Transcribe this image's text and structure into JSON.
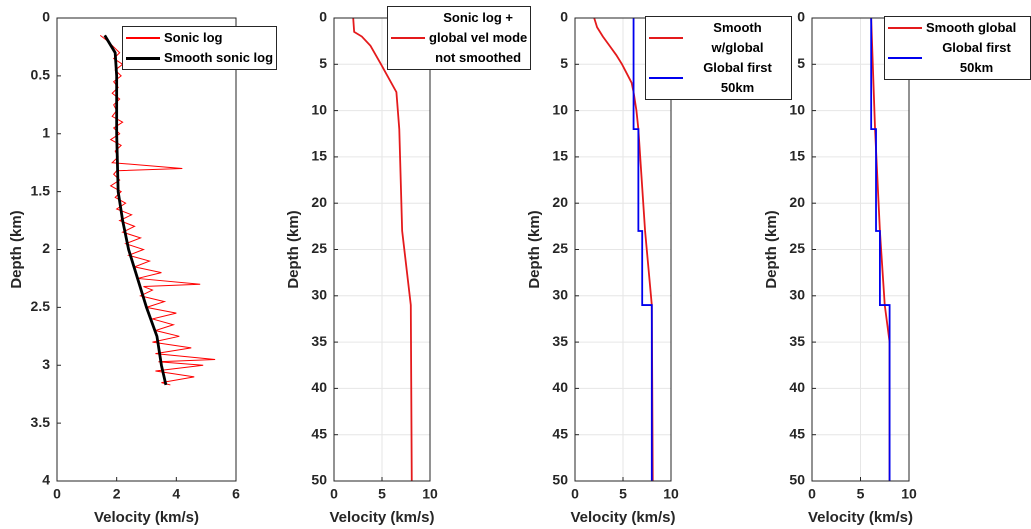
{
  "chart_data": [
    {
      "type": "line",
      "xlabel": "Velocity (km/s)",
      "ylabel": "Depth (km)",
      "xlim": [
        0,
        6
      ],
      "xticks": [
        0,
        2,
        4,
        6
      ],
      "ylim": [
        0,
        4
      ],
      "yticks": [
        0,
        0.5,
        1,
        1.5,
        2,
        2.5,
        3,
        3.5,
        4
      ],
      "y_reversed": true,
      "grid": false,
      "series": [
        {
          "name": "Sonic log",
          "color": "#ff0000",
          "y": [
            0.15,
            0.2,
            0.25,
            0.3,
            0.35,
            0.4,
            0.45,
            0.5,
            0.55,
            0.6,
            0.65,
            0.7,
            0.75,
            0.8,
            0.85,
            0.9,
            0.95,
            1.0,
            1.05,
            1.1,
            1.15,
            1.2,
            1.25,
            1.3,
            1.32,
            1.35,
            1.4,
            1.45,
            1.5,
            1.55,
            1.6,
            1.65,
            1.7,
            1.75,
            1.8,
            1.85,
            1.9,
            1.95,
            2.0,
            2.05,
            2.1,
            2.15,
            2.2,
            2.25,
            2.3,
            2.32,
            2.35,
            2.4,
            2.45,
            2.5,
            2.55,
            2.6,
            2.65,
            2.7,
            2.75,
            2.8,
            2.85,
            2.9,
            2.95,
            2.97,
            3.0,
            3.05,
            3.1,
            3.15,
            3.17
          ],
          "x": [
            1.45,
            1.7,
            1.9,
            2.1,
            1.9,
            2.2,
            1.95,
            2.15,
            1.9,
            2.05,
            1.85,
            2.1,
            1.9,
            2.0,
            1.85,
            2.2,
            1.9,
            2.1,
            1.8,
            2.15,
            1.95,
            2.05,
            1.85,
            4.2,
            2.0,
            1.9,
            2.1,
            1.8,
            2.15,
            1.95,
            2.3,
            2.0,
            2.5,
            2.1,
            2.6,
            2.2,
            2.8,
            2.3,
            2.9,
            2.4,
            3.1,
            2.6,
            3.5,
            2.7,
            4.8,
            2.9,
            3.2,
            2.8,
            3.6,
            3.0,
            4.0,
            3.2,
            3.9,
            3.3,
            4.1,
            3.2,
            4.5,
            3.3,
            5.3,
            3.4,
            4.9,
            3.3,
            4.6,
            3.5,
            3.8
          ]
        },
        {
          "name": "Smooth sonic log",
          "color": "#000000",
          "y": [
            0.15,
            0.3,
            0.5,
            1.0,
            1.5,
            1.75,
            2.0,
            2.25,
            2.5,
            2.75,
            3.0,
            3.17
          ],
          "x": [
            1.6,
            1.95,
            2.0,
            2.0,
            2.05,
            2.2,
            2.4,
            2.7,
            3.0,
            3.35,
            3.5,
            3.65
          ]
        }
      ]
    },
    {
      "type": "line",
      "xlabel": "Velocity (km/s)",
      "ylabel": "Depth (km)",
      "xlim": [
        0,
        10
      ],
      "xticks": [
        0,
        5,
        10
      ],
      "ylim": [
        0,
        50
      ],
      "yticks": [
        0,
        5,
        10,
        15,
        20,
        25,
        30,
        35,
        40,
        45,
        50
      ],
      "y_reversed": true,
      "grid": true,
      "series": [
        {
          "name": "Sonic log +\nglobal vel mode\nnot smoothed",
          "color": "#e41a1c",
          "y": [
            0,
            1.5,
            2,
            3,
            5,
            8,
            12,
            23,
            31,
            50
          ],
          "x": [
            2.0,
            2.1,
            2.9,
            3.8,
            4.9,
            6.5,
            6.8,
            7.1,
            8.0,
            8.1
          ]
        }
      ]
    },
    {
      "type": "line",
      "xlabel": "Velocity (km/s)",
      "ylabel": "Depth (km)",
      "xlim": [
        0,
        10
      ],
      "xticks": [
        0,
        5,
        10
      ],
      "ylim": [
        0,
        50
      ],
      "yticks": [
        0,
        5,
        10,
        15,
        20,
        25,
        30,
        35,
        40,
        45,
        50
      ],
      "y_reversed": true,
      "grid": true,
      "series": [
        {
          "name": "Smooth w/global",
          "color": "#e41a1c",
          "y": [
            0,
            1,
            2,
            3,
            4,
            5,
            6,
            7,
            8,
            10,
            12,
            23,
            31,
            50
          ],
          "x": [
            2.0,
            2.3,
            2.9,
            3.6,
            4.3,
            4.9,
            5.4,
            5.9,
            6.1,
            6.4,
            6.6,
            7.3,
            8.0,
            8.1
          ]
        },
        {
          "name": "Global first 50km",
          "color": "#0000ee",
          "y": [
            0,
            12,
            12,
            23,
            23,
            31,
            31,
            50
          ],
          "x": [
            6.1,
            6.1,
            6.6,
            6.6,
            7.0,
            7.0,
            8.0,
            8.0
          ]
        }
      ]
    },
    {
      "type": "line",
      "xlabel": "Velocity (km/s)",
      "ylabel": "Depth (km)",
      "xlim": [
        0,
        10
      ],
      "xticks": [
        0,
        5,
        10
      ],
      "ylim": [
        0,
        50
      ],
      "yticks": [
        0,
        5,
        10,
        15,
        20,
        25,
        30,
        35,
        40,
        45,
        50
      ],
      "y_reversed": true,
      "grid": true,
      "series": [
        {
          "name": "Smooth global",
          "color": "#e41a1c",
          "y": [
            0,
            12,
            23,
            31,
            35,
            50
          ],
          "x": [
            6.1,
            6.5,
            7.0,
            7.5,
            8.0,
            8.0
          ]
        },
        {
          "name": "Global first 50km",
          "color": "#0000ee",
          "y": [
            0,
            12,
            12,
            23,
            23,
            31,
            31,
            50
          ],
          "x": [
            6.1,
            6.1,
            6.6,
            6.6,
            7.0,
            7.0,
            8.0,
            8.0
          ]
        }
      ]
    }
  ]
}
